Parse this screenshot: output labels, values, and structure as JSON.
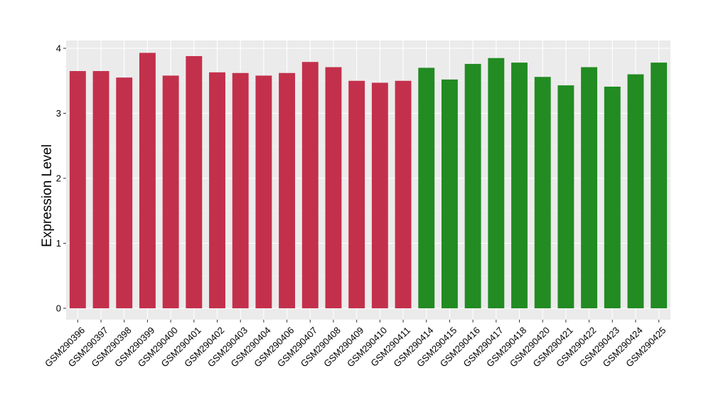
{
  "chart_data": {
    "type": "bar",
    "ylabel": "Expression Level",
    "xlabel": "",
    "ylim": [
      0,
      4
    ],
    "yticks": [
      0,
      1,
      2,
      3,
      4
    ],
    "grid": true,
    "background": "#ebebeb",
    "categories": [
      "GSM290396",
      "GSM290397",
      "GSM290398",
      "GSM290399",
      "GSM290400",
      "GSM290401",
      "GSM290402",
      "GSM290403",
      "GSM290404",
      "GSM290406",
      "GSM290407",
      "GSM290408",
      "GSM290409",
      "GSM290410",
      "GSM290411",
      "GSM290414",
      "GSM290415",
      "GSM290416",
      "GSM290417",
      "GSM290418",
      "GSM290420",
      "GSM290421",
      "GSM290422",
      "GSM290423",
      "GSM290424",
      "GSM290425"
    ],
    "values": [
      3.65,
      3.65,
      3.55,
      3.93,
      3.58,
      3.88,
      3.63,
      3.62,
      3.58,
      3.62,
      3.79,
      3.71,
      3.5,
      3.47,
      3.5,
      3.7,
      3.52,
      3.76,
      3.85,
      3.78,
      3.56,
      3.43,
      3.71,
      3.41,
      3.6,
      3.78
    ],
    "groups": [
      "red",
      "red",
      "red",
      "red",
      "red",
      "red",
      "red",
      "red",
      "red",
      "red",
      "red",
      "red",
      "red",
      "red",
      "red",
      "green",
      "green",
      "green",
      "green",
      "green",
      "green",
      "green",
      "green",
      "green",
      "green",
      "green"
    ],
    "colors": {
      "red": "#c3304b",
      "green": "#228b22"
    }
  }
}
